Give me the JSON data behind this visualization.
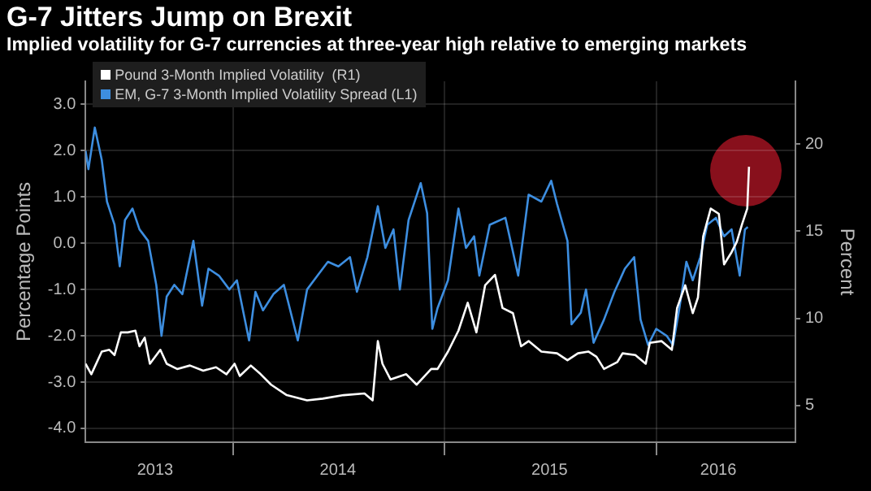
{
  "chart_data": {
    "type": "line",
    "title": "G-7 Jitters Jump on Brexit",
    "subtitle": "Implied volatility for G-7 currencies at three-year high relative to emerging markets",
    "ylabel": "Percentage Points",
    "y2label": "Percent",
    "xlim": [
      "2013-04-22",
      "2016-08-28"
    ],
    "xticks": [
      {
        "value": "2013-08-20",
        "label": "2013"
      },
      {
        "value": "2014-01-01",
        "label": null
      },
      {
        "value": "2014-07-01",
        "label": "2014"
      },
      {
        "value": "2015-01-01",
        "label": null
      },
      {
        "value": "2015-07-01",
        "label": "2015"
      },
      {
        "value": "2016-01-01",
        "label": null
      },
      {
        "value": "2016-04-17",
        "label": "2016"
      }
    ],
    "ylim": [
      -4.3,
      3.5
    ],
    "yticks": [
      {
        "value": -4,
        "label": "-4.0"
      },
      {
        "value": -3,
        "label": "-3.0"
      },
      {
        "value": -2,
        "label": "-2.0"
      },
      {
        "value": -1,
        "label": "-1.0"
      },
      {
        "value": 0,
        "label": "0.0"
      },
      {
        "value": 1,
        "label": "1.0"
      },
      {
        "value": 2,
        "label": "2.0"
      },
      {
        "value": 3,
        "label": "3.0"
      }
    ],
    "y2lim": [
      2.9,
      23.6
    ],
    "y2ticks": [
      5,
      10,
      15,
      20
    ],
    "grid": true,
    "legend": "top left",
    "marker": "none",
    "line_style": "solid",
    "series": [
      {
        "name": "Pound 3-Month Implied Volatility  (R1)",
        "color": "#ffffff",
        "axis": "y2",
        "x": [
          "2013-04-22",
          "2013-05-02",
          "2013-05-20",
          "2013-06-02",
          "2013-06-11",
          "2013-06-22",
          "2013-07-04",
          "2013-07-17",
          "2013-07-24",
          "2013-08-02",
          "2013-08-11",
          "2013-08-29",
          "2013-09-09",
          "2013-09-27",
          "2013-10-19",
          "2013-11-11",
          "2013-12-03",
          "2013-12-21",
          "2014-01-04",
          "2014-01-13",
          "2014-02-01",
          "2014-02-18",
          "2014-03-08",
          "2014-04-04",
          "2014-05-09",
          "2014-06-05",
          "2014-07-11",
          "2014-08-16",
          "2014-08-30",
          "2014-09-08",
          "2014-09-16",
          "2014-09-30",
          "2014-10-27",
          "2014-11-14",
          "2014-12-09",
          "2014-12-20",
          "2015-01-07",
          "2015-01-25",
          "2015-02-10",
          "2015-02-25",
          "2015-03-12",
          "2015-03-29",
          "2015-04-11",
          "2015-04-29",
          "2015-05-13",
          "2015-05-26",
          "2015-06-17",
          "2015-07-14",
          "2015-08-01",
          "2015-08-19",
          "2015-09-06",
          "2015-09-20",
          "2015-10-03",
          "2015-10-26",
          "2015-11-04",
          "2015-11-26",
          "2015-12-14",
          "2015-12-21",
          "2016-01-10",
          "2016-01-28",
          "2016-02-06",
          "2016-02-20",
          "2016-03-04",
          "2016-03-13",
          "2016-03-22",
          "2016-04-04",
          "2016-04-18",
          "2016-04-27",
          "2016-05-10",
          "2016-05-19",
          "2016-05-28",
          "2016-06-06",
          "2016-06-09"
        ],
        "values": [
          7.4,
          6.8,
          8.1,
          8.2,
          7.9,
          9.2,
          9.2,
          9.3,
          8.4,
          8.9,
          7.4,
          8.2,
          7.4,
          7.1,
          7.3,
          7.0,
          7.2,
          6.8,
          7.4,
          6.7,
          7.3,
          6.8,
          6.2,
          5.6,
          5.3,
          5.4,
          5.6,
          5.7,
          5.3,
          8.7,
          7.4,
          6.5,
          6.8,
          6.2,
          7.1,
          7.1,
          8.1,
          9.3,
          10.9,
          9.2,
          11.9,
          12.5,
          10.6,
          10.3,
          8.4,
          8.7,
          8.1,
          8.0,
          7.6,
          8.0,
          8.1,
          7.8,
          7.1,
          7.5,
          8.0,
          7.9,
          7.4,
          8.6,
          8.7,
          8.2,
          10.6,
          11.9,
          10.3,
          11.2,
          14.7,
          16.3,
          16.0,
          13.1,
          13.8,
          14.4,
          15.4,
          16.3,
          18.7
        ]
      },
      {
        "name": "EM, G-7 3-Month Implied Volatility Spread (L1)",
        "color": "#3d8ee0",
        "x": [
          "2013-04-22",
          "2013-04-27",
          "2013-05-08",
          "2013-05-20",
          "2013-05-29",
          "2013-06-11",
          "2013-06-20",
          "2013-06-29",
          "2013-07-12",
          "2013-07-24",
          "2013-08-08",
          "2013-08-22",
          "2013-08-31",
          "2013-09-09",
          "2013-09-22",
          "2013-10-06",
          "2013-10-25",
          "2013-11-09",
          "2013-11-20",
          "2013-12-08",
          "2013-12-26",
          "2014-01-08",
          "2014-01-29",
          "2014-02-09",
          "2014-02-22",
          "2014-03-12",
          "2014-03-30",
          "2014-04-23",
          "2014-05-09",
          "2014-05-27",
          "2014-06-14",
          "2014-07-02",
          "2014-07-22",
          "2014-08-03",
          "2014-08-21",
          "2014-09-08",
          "2014-09-21",
          "2014-10-05",
          "2014-10-16",
          "2014-10-31",
          "2014-11-21",
          "2014-12-02",
          "2014-12-11",
          "2014-12-20",
          "2015-01-07",
          "2015-01-25",
          "2015-02-07",
          "2015-02-21",
          "2015-03-02",
          "2015-03-20",
          "2015-04-16",
          "2015-05-08",
          "2015-05-26",
          "2015-06-17",
          "2015-07-04",
          "2015-07-14",
          "2015-08-01",
          "2015-08-08",
          "2015-08-24",
          "2015-09-02",
          "2015-09-15",
          "2015-10-03",
          "2015-10-21",
          "2015-11-08",
          "2015-11-24",
          "2015-12-05",
          "2015-12-18",
          "2016-01-01",
          "2016-01-19",
          "2016-01-30",
          "2016-02-10",
          "2016-02-22",
          "2016-03-04",
          "2016-03-17",
          "2016-03-29",
          "2016-04-13",
          "2016-04-27",
          "2016-05-10",
          "2016-05-24",
          "2016-06-02",
          "2016-06-07"
        ],
        "values": [
          2.0,
          1.6,
          2.5,
          1.8,
          0.9,
          0.4,
          -0.5,
          0.5,
          0.75,
          0.3,
          0.05,
          -0.9,
          -2.0,
          -1.15,
          -0.9,
          -1.1,
          0.05,
          -1.35,
          -0.55,
          -0.7,
          -1.0,
          -0.8,
          -2.1,
          -1.05,
          -1.45,
          -1.1,
          -0.9,
          -2.1,
          -1.0,
          -0.7,
          -0.4,
          -0.5,
          -0.3,
          -1.05,
          -0.3,
          0.8,
          -0.1,
          0.3,
          -1.0,
          0.5,
          1.3,
          0.65,
          -1.85,
          -1.4,
          -0.8,
          0.75,
          -0.1,
          0.15,
          -0.7,
          0.4,
          0.55,
          -0.7,
          1.05,
          0.9,
          1.35,
          0.85,
          0.05,
          -1.75,
          -1.5,
          -1.0,
          -2.15,
          -1.65,
          -1.05,
          -0.55,
          -0.3,
          -1.65,
          -2.2,
          -1.85,
          -2.0,
          -2.2,
          -1.4,
          -0.4,
          -0.8,
          -0.3,
          0.4,
          0.55,
          0.15,
          0.3,
          -0.7,
          0.3,
          0.35
        ]
      }
    ]
  }
}
